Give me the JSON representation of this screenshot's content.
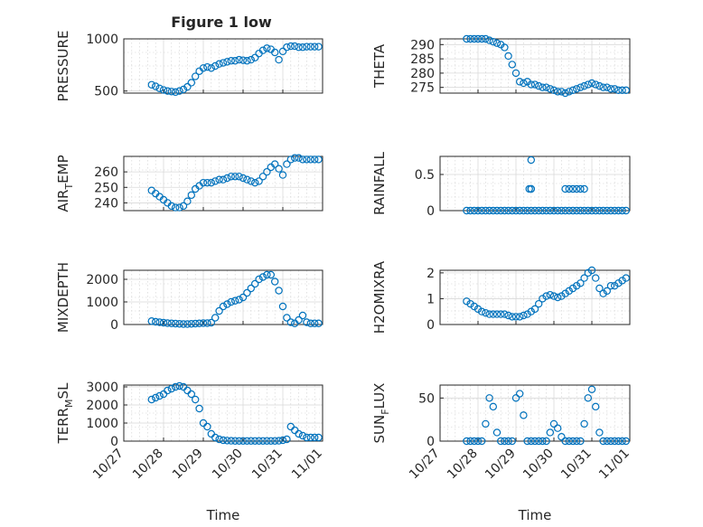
{
  "figure": {
    "title": "Figure 1 low",
    "marker_color": "#0072bd"
  },
  "chart_data": [
    {
      "type": "scatter",
      "ylabel": "PRESSURE",
      "xlabel": "",
      "xlim": [
        0,
        5
      ],
      "ylim": [
        480,
        1000
      ],
      "yticks": [
        500,
        1000
      ],
      "yticklabels": [
        "500",
        "1000"
      ],
      "grid": true,
      "x": [
        0.7,
        0.8,
        0.9,
        1.0,
        1.1,
        1.2,
        1.3,
        1.4,
        1.5,
        1.6,
        1.7,
        1.8,
        1.9,
        2.0,
        2.1,
        2.2,
        2.3,
        2.4,
        2.5,
        2.6,
        2.7,
        2.8,
        2.9,
        3.0,
        3.1,
        3.2,
        3.3,
        3.4,
        3.5,
        3.6,
        3.7,
        3.8,
        3.9,
        4.0,
        4.1,
        4.2,
        4.3,
        4.4,
        4.5,
        4.6,
        4.7,
        4.8,
        4.9
      ],
      "y": [
        560,
        545,
        525,
        510,
        500,
        495,
        490,
        500,
        515,
        540,
        580,
        640,
        690,
        720,
        730,
        720,
        740,
        760,
        770,
        780,
        790,
        790,
        800,
        795,
        790,
        800,
        820,
        860,
        890,
        910,
        900,
        870,
        800,
        880,
        920,
        930,
        930,
        920,
        920,
        925,
        925,
        925,
        925
      ]
    },
    {
      "type": "scatter",
      "ylabel": "THETA",
      "xlabel": "",
      "xlim": [
        0,
        5
      ],
      "ylim": [
        273,
        292
      ],
      "yticks": [
        275,
        280,
        285,
        290
      ],
      "yticklabels": [
        "275",
        "280",
        "285",
        "290"
      ],
      "grid": true,
      "x": [
        0.7,
        0.8,
        0.9,
        1.0,
        1.1,
        1.2,
        1.3,
        1.4,
        1.5,
        1.6,
        1.7,
        1.8,
        1.9,
        2.0,
        2.1,
        2.2,
        2.3,
        2.4,
        2.5,
        2.6,
        2.7,
        2.8,
        2.9,
        3.0,
        3.1,
        3.2,
        3.3,
        3.4,
        3.5,
        3.6,
        3.7,
        3.8,
        3.9,
        4.0,
        4.1,
        4.2,
        4.3,
        4.4,
        4.5,
        4.6,
        4.7,
        4.8,
        4.9
      ],
      "y": [
        292,
        292,
        292,
        292,
        292,
        292,
        291.5,
        291,
        290.5,
        290,
        289,
        286,
        283,
        280,
        277,
        276.5,
        277,
        276,
        276,
        275.5,
        275,
        275,
        274.5,
        274,
        273.5,
        273.5,
        273,
        273.5,
        274,
        274.5,
        275,
        275.5,
        276,
        276.5,
        276,
        275.5,
        275,
        275,
        274.5,
        274.5,
        274,
        274,
        274
      ]
    },
    {
      "type": "scatter",
      "ylabel": "AIR_TEMP",
      "xlabel": "",
      "xlim": [
        0,
        5
      ],
      "ylim": [
        235,
        270
      ],
      "yticks": [
        240,
        250,
        260
      ],
      "yticklabels": [
        "240",
        "250",
        "260"
      ],
      "grid": true,
      "x": [
        0.7,
        0.8,
        0.9,
        1.0,
        1.1,
        1.2,
        1.3,
        1.4,
        1.5,
        1.6,
        1.7,
        1.8,
        1.9,
        2.0,
        2.1,
        2.2,
        2.3,
        2.4,
        2.5,
        2.6,
        2.7,
        2.8,
        2.9,
        3.0,
        3.1,
        3.2,
        3.3,
        3.4,
        3.5,
        3.6,
        3.7,
        3.8,
        3.9,
        4.0,
        4.1,
        4.2,
        4.3,
        4.4,
        4.5,
        4.6,
        4.7,
        4.8,
        4.9
      ],
      "y": [
        248,
        246,
        244,
        242,
        240,
        238,
        237,
        237,
        238,
        241,
        245,
        249,
        251,
        253,
        253,
        253,
        254,
        255,
        255,
        256,
        257,
        257,
        257,
        256,
        255,
        254,
        253,
        254,
        257,
        260,
        263,
        265,
        262,
        258,
        265,
        268,
        269,
        269,
        268,
        268,
        268,
        268,
        268
      ]
    },
    {
      "type": "scatter",
      "ylabel": "RAINFALL",
      "xlabel": "",
      "xlim": [
        0,
        5
      ],
      "ylim": [
        0,
        0.75
      ],
      "yticks": [
        0,
        0.5
      ],
      "yticklabels": [
        "0",
        "0.5"
      ],
      "grid": true,
      "x": [
        0.7,
        0.8,
        0.9,
        1.0,
        1.1,
        1.2,
        1.3,
        1.4,
        1.5,
        1.6,
        1.7,
        1.8,
        1.9,
        2.0,
        2.1,
        2.2,
        2.3,
        2.4,
        2.5,
        2.6,
        2.7,
        2.8,
        2.9,
        3.0,
        3.1,
        3.2,
        3.3,
        3.4,
        3.5,
        3.6,
        3.7,
        3.8,
        3.9,
        4.0,
        4.1,
        4.2,
        4.3,
        4.4,
        4.5,
        4.6,
        4.7,
        4.8,
        4.9,
        2.4,
        2.4,
        2.4,
        2.35,
        3.3,
        3.4,
        3.5,
        3.6,
        3.7,
        3.8
      ],
      "y": [
        0,
        0,
        0,
        0,
        0,
        0,
        0,
        0,
        0,
        0,
        0,
        0,
        0,
        0,
        0,
        0,
        0,
        0,
        0,
        0,
        0,
        0,
        0,
        0,
        0,
        0,
        0,
        0,
        0,
        0,
        0,
        0,
        0,
        0,
        0,
        0,
        0,
        0,
        0,
        0,
        0,
        0,
        0,
        0.7,
        0.3,
        0.3,
        0.3,
        0.3,
        0.3,
        0.3,
        0.3,
        0.3,
        0.3
      ]
    },
    {
      "type": "scatter",
      "ylabel": "MIXDEPTH",
      "xlabel": "",
      "xlim": [
        0,
        5
      ],
      "ylim": [
        0,
        2400
      ],
      "yticks": [
        0,
        1000,
        2000
      ],
      "yticklabels": [
        "0",
        "1000",
        "2000"
      ],
      "grid": true,
      "x": [
        0.7,
        0.8,
        0.9,
        1.0,
        1.1,
        1.2,
        1.3,
        1.4,
        1.5,
        1.6,
        1.7,
        1.8,
        1.9,
        2.0,
        2.1,
        2.2,
        2.3,
        2.4,
        2.5,
        2.6,
        2.7,
        2.8,
        2.9,
        3.0,
        3.1,
        3.2,
        3.3,
        3.4,
        3.5,
        3.6,
        3.7,
        3.8,
        3.9,
        4.0,
        4.1,
        4.2,
        4.3,
        4.4,
        4.5,
        4.6,
        4.7,
        4.8,
        4.9
      ],
      "y": [
        150,
        120,
        100,
        80,
        60,
        50,
        40,
        30,
        20,
        20,
        30,
        40,
        50,
        60,
        60,
        80,
        300,
        600,
        800,
        900,
        1000,
        1050,
        1100,
        1200,
        1400,
        1600,
        1800,
        2000,
        2100,
        2200,
        2200,
        1900,
        1500,
        800,
        300,
        100,
        50,
        200,
        400,
        100,
        50,
        50,
        50
      ]
    },
    {
      "type": "scatter",
      "ylabel": "H2OMIXRA",
      "xlabel": "",
      "xlim": [
        0,
        5
      ],
      "ylim": [
        0,
        2.1
      ],
      "yticks": [
        0,
        1,
        2
      ],
      "yticklabels": [
        "0",
        "1",
        "2"
      ],
      "grid": true,
      "x": [
        0.7,
        0.8,
        0.9,
        1.0,
        1.1,
        1.2,
        1.3,
        1.4,
        1.5,
        1.6,
        1.7,
        1.8,
        1.9,
        2.0,
        2.1,
        2.2,
        2.3,
        2.4,
        2.5,
        2.6,
        2.7,
        2.8,
        2.9,
        3.0,
        3.1,
        3.2,
        3.3,
        3.4,
        3.5,
        3.6,
        3.7,
        3.8,
        3.9,
        4.0,
        4.1,
        4.2,
        4.3,
        4.4,
        4.5,
        4.6,
        4.7,
        4.8,
        4.9
      ],
      "y": [
        0.9,
        0.8,
        0.7,
        0.6,
        0.5,
        0.45,
        0.4,
        0.4,
        0.4,
        0.4,
        0.4,
        0.35,
        0.3,
        0.3,
        0.3,
        0.35,
        0.4,
        0.5,
        0.6,
        0.8,
        1.0,
        1.1,
        1.15,
        1.1,
        1.05,
        1.1,
        1.2,
        1.3,
        1.4,
        1.5,
        1.6,
        1.8,
        2.0,
        2.1,
        1.8,
        1.4,
        1.2,
        1.3,
        1.5,
        1.5,
        1.6,
        1.7,
        1.8
      ]
    },
    {
      "type": "scatter",
      "ylabel": "TERR_MSL",
      "xlabel": "Time",
      "xlim": [
        0,
        5
      ],
      "ylim": [
        0,
        3100
      ],
      "yticks": [
        0,
        1000,
        2000,
        3000
      ],
      "yticklabels": [
        "0",
        "1000",
        "2000",
        "3000"
      ],
      "grid": true,
      "xticklabels": [
        "10/27",
        "10/28",
        "10/29",
        "10/30",
        "10/31",
        "11/01"
      ],
      "x": [
        0.7,
        0.8,
        0.9,
        1.0,
        1.1,
        1.2,
        1.3,
        1.4,
        1.5,
        1.6,
        1.7,
        1.8,
        1.9,
        2.0,
        2.1,
        2.2,
        2.3,
        2.4,
        2.5,
        2.6,
        2.7,
        2.8,
        2.9,
        3.0,
        3.1,
        3.2,
        3.3,
        3.4,
        3.5,
        3.6,
        3.7,
        3.8,
        3.9,
        4.0,
        4.1,
        4.2,
        4.3,
        4.4,
        4.5,
        4.6,
        4.7,
        4.8,
        4.9
      ],
      "y": [
        2300,
        2400,
        2500,
        2600,
        2800,
        2900,
        3000,
        3050,
        3000,
        2800,
        2600,
        2300,
        1800,
        1000,
        800,
        400,
        200,
        100,
        50,
        30,
        20,
        10,
        10,
        10,
        10,
        10,
        10,
        10,
        10,
        10,
        10,
        10,
        20,
        50,
        100,
        800,
        600,
        400,
        300,
        200,
        200,
        200,
        200
      ]
    },
    {
      "type": "scatter",
      "ylabel": "SUN_FLUX",
      "xlabel": "Time",
      "xlim": [
        0,
        5
      ],
      "ylim": [
        0,
        65
      ],
      "yticks": [
        0,
        50
      ],
      "yticklabels": [
        "0",
        "50"
      ],
      "grid": true,
      "xticklabels": [
        "10/27",
        "10/28",
        "10/29",
        "10/30",
        "10/31",
        "11/01"
      ],
      "x": [
        0.7,
        0.8,
        0.9,
        1.0,
        1.1,
        1.2,
        1.3,
        1.4,
        1.5,
        1.6,
        1.7,
        1.8,
        1.9,
        2.0,
        2.1,
        2.2,
        2.3,
        2.4,
        2.5,
        2.6,
        2.7,
        2.8,
        2.9,
        3.0,
        3.1,
        3.2,
        3.3,
        3.4,
        3.5,
        3.6,
        3.7,
        3.8,
        3.9,
        4.0,
        4.1,
        4.2,
        4.3,
        4.4,
        4.5,
        4.6,
        4.7,
        4.8,
        4.9
      ],
      "y": [
        0,
        0,
        0,
        0,
        0,
        20,
        50,
        40,
        10,
        0,
        0,
        0,
        0,
        50,
        55,
        30,
        0,
        0,
        0,
        0,
        0,
        0,
        10,
        20,
        15,
        5,
        0,
        0,
        0,
        0,
        0,
        20,
        50,
        60,
        40,
        10,
        0,
        0,
        0,
        0,
        0,
        0,
        0
      ]
    }
  ]
}
